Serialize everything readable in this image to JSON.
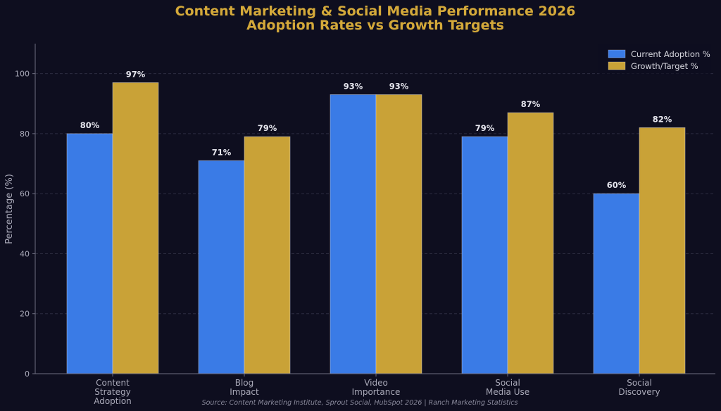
{
  "chart_data": {
    "type": "bar",
    "title": "Content Marketing & Social Media Performance 2026",
    "subtitle": "Adoption Rates vs Growth Targets",
    "ylabel": "Percentage (%)",
    "xlabel": "",
    "ylim": [
      0,
      110
    ],
    "yticks": [
      0,
      20,
      40,
      60,
      80,
      100
    ],
    "grid": true,
    "legend_position": "top-right",
    "categories": [
      [
        "Content",
        "Strategy",
        "Adoption"
      ],
      [
        "Blog",
        "Impact"
      ],
      [
        "Video",
        "Importance"
      ],
      [
        "Social",
        "Media Use"
      ],
      [
        "Social",
        "Discovery"
      ]
    ],
    "series": [
      {
        "name": "Current Adoption %",
        "color": "#3a7be6",
        "values": [
          80,
          71,
          93,
          79,
          60
        ],
        "labels": [
          "80%",
          "71%",
          "93%",
          "79%",
          "60%"
        ]
      },
      {
        "name": "Growth/Target %",
        "color": "#c9a237",
        "values": [
          97,
          79,
          93,
          87,
          82
        ],
        "labels": [
          "97%",
          "79%",
          "93%",
          "87%",
          "82%"
        ]
      }
    ],
    "source": "Source: Content Marketing Institute, Sprout Social, HubSpot 2026 | Ranch Marketing Statistics"
  },
  "colors": {
    "background": "#0e0e1f",
    "title": "#d4a93a",
    "axis": "#6e6e80",
    "grid": "#2c2c40"
  }
}
